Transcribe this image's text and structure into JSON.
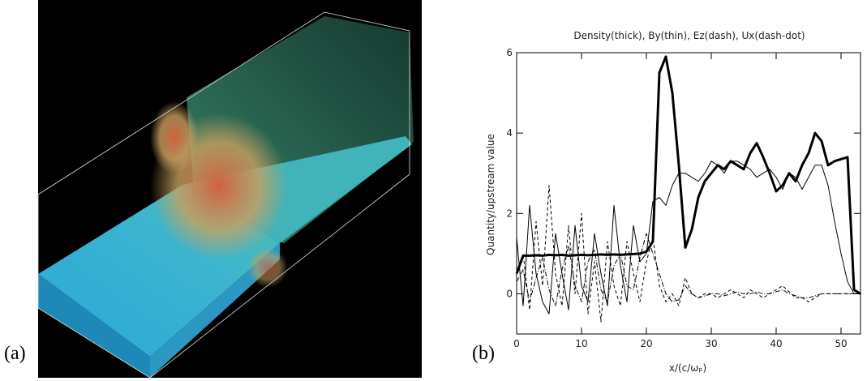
{
  "image_panel": {
    "label": "(a)"
  },
  "chart_data": {
    "type": "line",
    "panel_label": "(b)",
    "title": "Density(thick), By(thin), Ez(dash), Ux(dash-dot)",
    "xlabel": "x/(c/ωₚ)",
    "ylabel": "Quantity/upstream value",
    "x": [
      0,
      1,
      2,
      3,
      4,
      5,
      6,
      7,
      8,
      9,
      10,
      11,
      12,
      13,
      14,
      15,
      16,
      17,
      18,
      19,
      20,
      21,
      22,
      23,
      24,
      25,
      26,
      27,
      28,
      29,
      30,
      31,
      32,
      33,
      34,
      35,
      36,
      37,
      38,
      39,
      40,
      41,
      42,
      43,
      44,
      45,
      46,
      47,
      48,
      49,
      50,
      51,
      52,
      53
    ],
    "xlim": [
      0,
      53
    ],
    "xticks": [
      0,
      10,
      20,
      30,
      40,
      50
    ],
    "ylim": [
      -1,
      6
    ],
    "yticks": [
      0,
      2,
      4,
      6
    ],
    "series": [
      {
        "name": "Density",
        "color": "#000000",
        "width": 3,
        "dash": "none",
        "values": [
          0.5,
          0.95,
          0.95,
          0.96,
          0.95,
          0.97,
          0.96,
          0.97,
          0.95,
          0.96,
          0.97,
          0.96,
          0.97,
          0.98,
          0.97,
          0.98,
          0.97,
          0.98,
          0.99,
          1.0,
          1.05,
          1.3,
          5.5,
          5.9,
          5.0,
          3.2,
          1.15,
          1.6,
          2.4,
          2.8,
          3.0,
          3.2,
          3.1,
          3.3,
          3.2,
          3.1,
          3.5,
          3.75,
          3.4,
          3.0,
          2.55,
          2.7,
          3.0,
          2.8,
          3.2,
          3.5,
          4.0,
          3.8,
          3.2,
          3.3,
          3.35,
          3.4,
          0.1,
          0
        ]
      },
      {
        "name": "By",
        "color": "#000000",
        "width": 1,
        "dash": "none",
        "values": [
          1.4,
          -0.3,
          2.2,
          0.5,
          -0.2,
          -0.5,
          1.5,
          0.5,
          -0.4,
          1.7,
          0.2,
          -0.2,
          1.5,
          0.5,
          -0.3,
          2.2,
          0.7,
          -0.2,
          1.7,
          0.8,
          1.0,
          2.3,
          2.4,
          2.2,
          2.7,
          3.0,
          3.0,
          2.9,
          2.8,
          3.0,
          3.3,
          3.2,
          3.0,
          3.3,
          3.3,
          3.2,
          3.1,
          2.9,
          3.0,
          3.1,
          2.9,
          2.6,
          3.0,
          2.9,
          2.6,
          2.9,
          3.2,
          3.2,
          2.7,
          1.8,
          1.0,
          0.3,
          0,
          0
        ]
      },
      {
        "name": "Ez",
        "color": "#000000",
        "width": 1,
        "dash": "4 3",
        "values": [
          0.5,
          1.0,
          -0.4,
          1.8,
          0.2,
          2.7,
          0.5,
          -0.3,
          1.7,
          0,
          2.0,
          -0.5,
          0.8,
          -0.7,
          1.3,
          0.2,
          -0.3,
          1.3,
          0.5,
          -0.2,
          0.8,
          1.4,
          0.2,
          -0.2,
          0,
          -0.3,
          0.4,
          0,
          -0.1,
          0,
          0,
          -0.1,
          0,
          0.1,
          0,
          -0.1,
          0.1,
          0,
          -0.1,
          0,
          0.1,
          0.2,
          0.05,
          -0.1,
          -0.1,
          -0.2,
          -0.1,
          0,
          0,
          0,
          0,
          0,
          0,
          0
        ]
      },
      {
        "name": "Ux",
        "color": "#000000",
        "width": 1,
        "dash": "6 2 1 2",
        "values": [
          0.3,
          0.6,
          -0.2,
          0.4,
          0.9,
          0.1,
          -0.3,
          0.6,
          1.2,
          0.2,
          -0.2,
          0.8,
          1.1,
          0.1,
          -0.2,
          0.7,
          1.0,
          0.2,
          0.1,
          0.9,
          1.5,
          1.0,
          0.5,
          0,
          -0.2,
          -0.15,
          0.2,
          0,
          -0.1,
          -0.05,
          0,
          0,
          -0.05,
          0,
          0.05,
          0,
          0,
          0.05,
          0,
          0,
          0.05,
          0.1,
          0,
          -0.05,
          -0.1,
          -0.1,
          -0.05,
          0,
          0,
          0,
          0,
          0,
          0,
          0
        ]
      }
    ]
  }
}
